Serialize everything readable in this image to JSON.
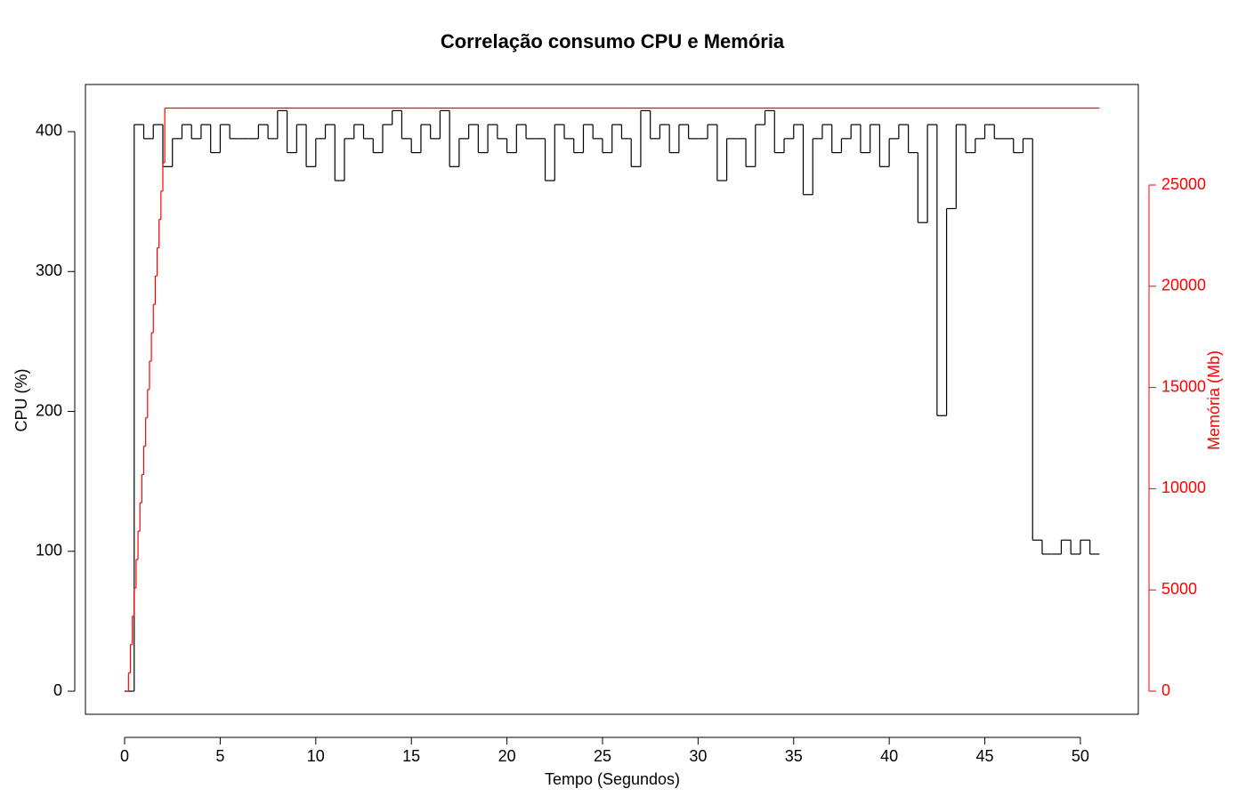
{
  "chart_data": {
    "type": "step",
    "title": "Correlação consumo CPU e Memória",
    "xlabel": "Tempo (Segundos)",
    "ylabel": "CPU (%)",
    "y2label": "Memória (Mb)",
    "xlim": [
      -2.05,
      53.03
    ],
    "xticks": [
      0,
      5,
      10,
      15,
      20,
      25,
      30,
      35,
      40,
      45,
      50
    ],
    "ylim": [
      -16.5,
      433.7
    ],
    "yticks": [
      0,
      100,
      200,
      300,
      400
    ],
    "y2lim": [
      -1142,
      29965
    ],
    "y2ticks": [
      0,
      5000,
      10000,
      15000,
      20000,
      25000
    ],
    "series": [
      {
        "name": "CPU (%)",
        "color": "#000000",
        "x": [
          0,
          0.5,
          1,
          1.5,
          2,
          2.5,
          3,
          3.5,
          4,
          4.5,
          5,
          5.5,
          6,
          6.5,
          7,
          7.5,
          8,
          8.5,
          9,
          9.5,
          10,
          10.5,
          11,
          11.5,
          12,
          12.5,
          13,
          13.5,
          14,
          14.5,
          15,
          15.5,
          16,
          16.5,
          17,
          17.5,
          18,
          18.5,
          19,
          19.5,
          20,
          20.5,
          21,
          21.5,
          22,
          22.5,
          23,
          23.5,
          24,
          24.5,
          25,
          25.5,
          26,
          26.5,
          27,
          27.5,
          28,
          28.5,
          29,
          29.5,
          30,
          30.5,
          31,
          31.5,
          32,
          32.5,
          33,
          33.5,
          34,
          34.5,
          35,
          35.5,
          36,
          36.5,
          37,
          37.5,
          38,
          38.5,
          39,
          39.5,
          40,
          40.5,
          41,
          41.5,
          42,
          42.5,
          43,
          43.5,
          44,
          44.5,
          45,
          45.5,
          46,
          46.5,
          47,
          47.5,
          48,
          48.5,
          49,
          49.5,
          50,
          50.5,
          51
        ],
        "values": [
          0,
          405,
          395,
          405,
          375,
          395,
          405,
          395,
          405,
          385,
          405,
          395,
          395,
          395,
          405,
          395,
          415,
          385,
          405,
          375,
          395,
          405,
          365,
          395,
          405,
          395,
          385,
          405,
          415,
          395,
          385,
          405,
          395,
          415,
          375,
          395,
          405,
          385,
          405,
          395,
          385,
          405,
          395,
          395,
          365,
          405,
          395,
          385,
          405,
          395,
          385,
          405,
          395,
          375,
          415,
          395,
          405,
          385,
          405,
          395,
          395,
          405,
          365,
          395,
          395,
          375,
          405,
          415,
          385,
          395,
          405,
          355,
          395,
          405,
          385,
          395,
          405,
          385,
          405,
          375,
          395,
          405,
          385,
          335,
          405,
          197,
          345,
          405,
          385,
          395,
          405,
          395,
          395,
          385,
          395,
          108,
          98,
          98,
          108,
          98,
          108,
          98,
          98
        ]
      },
      {
        "name": "Memória (Mb)",
        "color": "#ff0000",
        "axis": "y2",
        "x": [
          0.1,
          0.2,
          0.3,
          0.4,
          0.5,
          0.6,
          0.7,
          0.8,
          0.9,
          1.0,
          1.1,
          1.2,
          1.3,
          1.4,
          1.5,
          1.6,
          1.7,
          1.8,
          1.9,
          2.0,
          2.1,
          51
        ],
        "values": [
          0,
          900,
          2300,
          3700,
          5100,
          6500,
          7900,
          9300,
          10700,
          12100,
          13500,
          14900,
          16300,
          17700,
          19100,
          20500,
          21900,
          23300,
          24700,
          26100,
          28800,
          28800
        ]
      }
    ]
  }
}
